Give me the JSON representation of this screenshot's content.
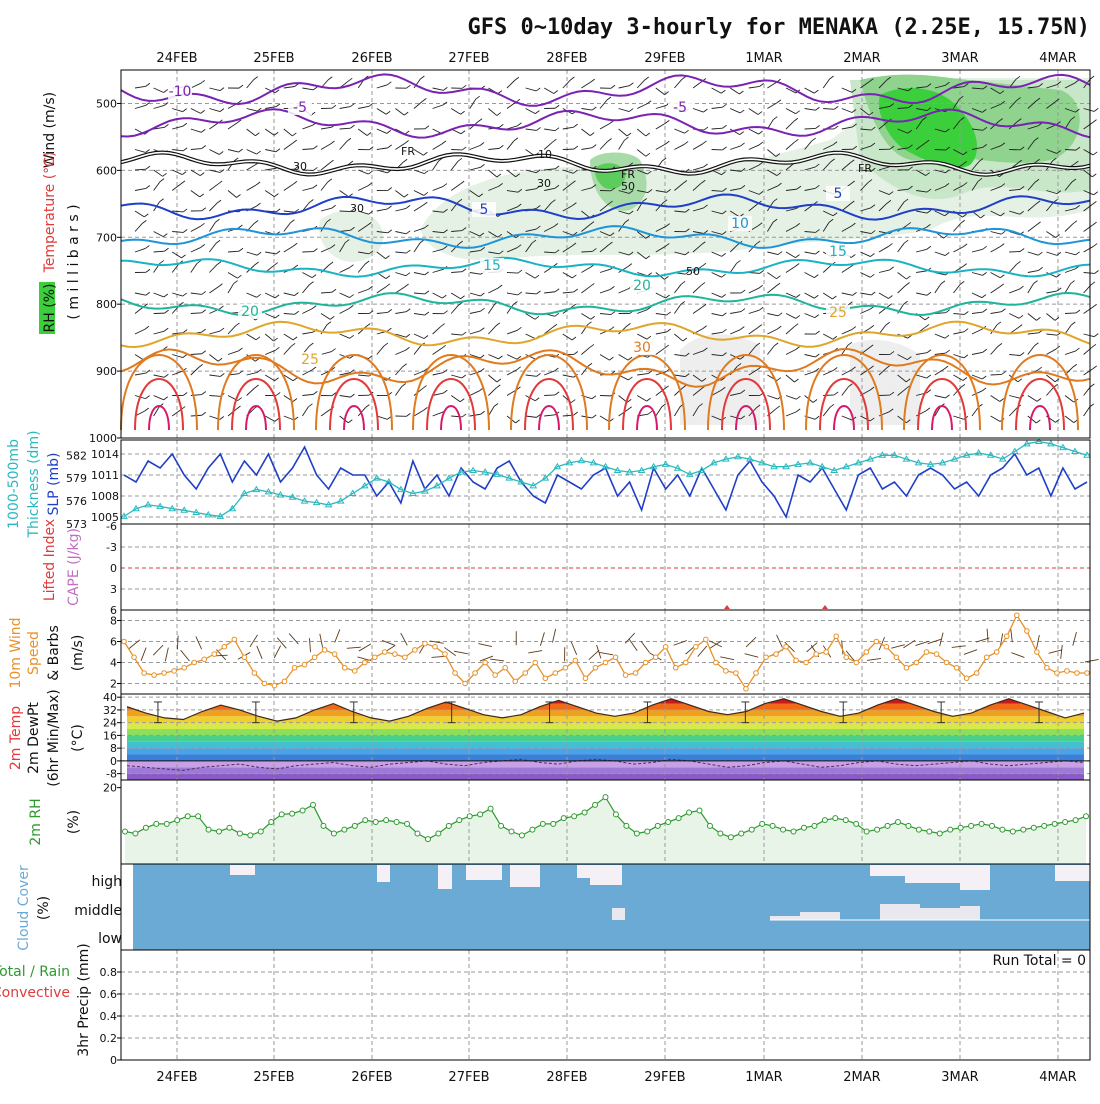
{
  "title": "GFS 0~10day 3-hourly for MENAKA (2.25E, 15.75N)",
  "dates": [
    "24FEB",
    "25FEB",
    "26FEB",
    "27FEB",
    "28FEB",
    "29FEB",
    "1MAR",
    "2MAR",
    "3MAR",
    "4MAR"
  ],
  "colors": {
    "rh_green": "#3ccf3c",
    "slp_blue": "#1f3fc8",
    "thick_cyan": "#2bb9bf",
    "wind_orange": "#e8912a",
    "rh_line": "#2e9a2e",
    "cloud_blue": "#6aaad4",
    "lifted_red": "#e23a3a",
    "cape_purple": "#c070c0",
    "freezing": "#111111"
  },
  "panels": {
    "upper": {
      "label_wind": "Wind (m/s)",
      "label_temp": "Temperature (°C)",
      "label_rh": "RH (%)",
      "label_mb": "( m i l l i b a r s )",
      "yticks": [
        "500",
        "600",
        "700",
        "800",
        "900",
        "1000"
      ],
      "freezing_label": "FR",
      "isotherm_labels": [
        "-10",
        "-5",
        "-5",
        "5",
        "5",
        "10",
        "15",
        "15",
        "20",
        "20",
        "25",
        "25",
        "30"
      ],
      "rh_labels": [
        "30",
        "30",
        "30",
        "50",
        "50",
        "10"
      ]
    },
    "slp": {
      "label_thick": "Thickness (dm)",
      "label_thick2": "1000-500mb",
      "label_slp": "SLP (mb)",
      "thick_ticks": [
        "582",
        "579",
        "576",
        "573"
      ],
      "slp_ticks": [
        "1014",
        "1011",
        "1008",
        "1005"
      ]
    },
    "stability": {
      "label_li": "Lifted Index",
      "label_cape": "CAPE (J/kg)",
      "yticks": [
        "-6",
        "-3",
        "0",
        "3",
        "6"
      ]
    },
    "wind10": {
      "label_1": "10m Wind",
      "label_2": "Speed",
      "label_3": "& Barbs",
      "label_unit": "(m/s)",
      "yticks": [
        "8",
        "6",
        "4",
        "2"
      ]
    },
    "temp2m": {
      "label_1": "2m Temp",
      "label_2": "2m DewPt",
      "label_3": "(6hr Min/Max)",
      "label_unit": "(°C)",
      "yticks": [
        "40",
        "32",
        "24",
        "16",
        "8",
        "0",
        "-8"
      ]
    },
    "rh2m": {
      "label_1": "2m RH",
      "label_unit": "(%)",
      "yticks": [
        "20"
      ]
    },
    "cloud": {
      "label_1": "Cloud Cover",
      "label_unit": "(%)",
      "rows": [
        "high",
        "middle",
        "low"
      ]
    },
    "precip": {
      "label_1": "Total / Rain",
      "label_2": "Convective",
      "label_3": "3hr Precip (mm)",
      "yticks": [
        "0.8",
        "0.6",
        "0.4",
        "0.2",
        "0"
      ],
      "run_total": "Run Total = 0"
    }
  },
  "chart_data": [
    {
      "type": "line",
      "name": "upper-air cross section",
      "y_axis": "pressure (mb)",
      "ylim": [
        450,
        1000
      ],
      "freezing_level_mb": 590,
      "isotherms_C": [
        -10,
        -5,
        5,
        10,
        15,
        20,
        25,
        30
      ]
    },
    {
      "type": "line",
      "series": [
        {
          "name": "SLP (mb)",
          "values": [
            1011,
            1010,
            1013,
            1012,
            1014,
            1011,
            1009,
            1012,
            1014,
            1010,
            1013,
            1011,
            1014,
            1010,
            1012,
            1015,
            1011,
            1009,
            1012,
            1011,
            1011,
            1008,
            1010,
            1007,
            1013,
            1009,
            1011,
            1008,
            1012,
            1010,
            1009,
            1012,
            1013,
            1010,
            1008,
            1007,
            1011,
            1010,
            1009,
            1011,
            1012,
            1008,
            1010,
            1006,
            1012,
            1009,
            1011,
            1008,
            1012,
            1009,
            1006,
            1011,
            1013,
            1010,
            1008,
            1005,
            1011,
            1010,
            1012,
            1009,
            1006,
            1011,
            1012,
            1009,
            1010,
            1008,
            1011,
            1012,
            1011,
            1009,
            1010,
            1008,
            1011,
            1012,
            1014,
            1011,
            1012,
            1008,
            1012,
            1009,
            1010
          ]
        },
        {
          "name": "Thickness (dm)",
          "values": [
            574,
            575,
            575.5,
            575.3,
            575,
            574.8,
            574.5,
            574.2,
            574,
            575,
            577,
            577.5,
            577.2,
            576.8,
            576.5,
            576,
            575.8,
            575.5,
            576,
            577,
            578,
            579,
            578.5,
            577.5,
            577,
            577.3,
            578,
            579,
            579.8,
            580,
            579.8,
            579.5,
            579,
            578.5,
            578,
            579,
            580.5,
            581,
            581.3,
            581,
            580.5,
            580,
            579.8,
            580,
            580.5,
            580.8,
            580.3,
            579.5,
            580,
            581,
            581.5,
            581.8,
            581.5,
            581,
            580.5,
            580.5,
            580.8,
            581,
            580.5,
            580,
            580.5,
            581,
            581.5,
            582,
            582,
            581.5,
            581,
            580.8,
            581,
            581.5,
            582,
            582.3,
            582,
            581.5,
            582.5,
            583.5,
            583.8,
            583.5,
            583,
            582.5,
            582
          ]
        }
      ],
      "ylim_slp": [
        1004,
        1016
      ],
      "ylim_thick": [
        573,
        584
      ]
    },
    {
      "type": "line",
      "name": "10m wind speed",
      "ylabel": "(m/s)",
      "ylim": [
        1,
        9
      ],
      "values": [
        6,
        4.5,
        3,
        2.8,
        3,
        3.2,
        3.5,
        4,
        4.3,
        4.8,
        5.5,
        6.2,
        4.5,
        3,
        2,
        1.8,
        2.2,
        3.5,
        3.8,
        4.5,
        5.2,
        4.8,
        3.5,
        3.2,
        4,
        4.5,
        5,
        4.8,
        4.5,
        5.2,
        5.8,
        5.5,
        4.8,
        3,
        2,
        3,
        4,
        2.8,
        3.5,
        2.2,
        3,
        4,
        2.5,
        3,
        3.5,
        4.2,
        2.5,
        3.5,
        4,
        4.5,
        2.8,
        3,
        4,
        4.5,
        5.5,
        3.5,
        4,
        5.5,
        6.2,
        4,
        3.2,
        3,
        1.5,
        3,
        4.5,
        4.8,
        5.5,
        4.2,
        4,
        4.8,
        5,
        6.5,
        4.5,
        4,
        5,
        6,
        5.5,
        4.5,
        3.5,
        4,
        5,
        4.8,
        4,
        3.5,
        2.5,
        3,
        4.5,
        5,
        6.5,
        8.5,
        7,
        5,
        3.5,
        3,
        3.2,
        3,
        3
      ]
    },
    {
      "type": "area",
      "name": "2m temperature",
      "ylabel": "(°C)",
      "ylim": [
        -12,
        42
      ],
      "values": [
        34,
        30,
        27,
        26,
        31,
        35,
        32,
        28,
        25,
        27,
        32,
        36,
        31,
        27,
        25,
        28,
        33,
        37,
        33,
        29,
        27,
        29,
        34,
        38,
        34,
        30,
        28,
        30,
        35,
        39,
        35,
        31,
        29,
        31,
        36,
        39,
        35,
        31,
        28,
        30,
        35,
        39,
        35,
        31,
        28,
        30,
        35,
        39,
        35,
        31,
        27,
        30
      ]
    },
    {
      "type": "line",
      "name": "2m dew point",
      "ylim": [
        -12,
        42
      ],
      "values": [
        -3,
        -4,
        -5,
        -6,
        -4,
        -3,
        -2,
        -4,
        -5,
        -3,
        -2,
        -1,
        -3,
        -4,
        -2,
        -1,
        0,
        -2,
        -3,
        -1,
        0,
        1,
        -1,
        -2,
        0,
        1,
        0,
        -2,
        -1,
        1,
        0,
        -2,
        -4,
        -3,
        -1,
        0,
        -2,
        -4,
        -3,
        -1,
        0,
        -2,
        -3,
        -2,
        -1,
        0,
        -2,
        -3,
        -2,
        -1,
        0,
        -1
      ]
    },
    {
      "type": "line",
      "name": "2m RH",
      "ylabel": "(%)",
      "ylim": [
        0,
        22
      ],
      "values": [
        8.5,
        8,
        9.5,
        10.5,
        10.5,
        11.5,
        12.5,
        12.5,
        9,
        8.5,
        9.5,
        8,
        7.5,
        8.5,
        11,
        13,
        13.2,
        14,
        15.5,
        10,
        8,
        9,
        10,
        11.5,
        11,
        11.5,
        11,
        10.5,
        8,
        6.5,
        8,
        10,
        11.5,
        12.5,
        13,
        14.5,
        10,
        8.5,
        7.5,
        9,
        10.5,
        10.5,
        12,
        12.5,
        13.5,
        15.5,
        17.5,
        13,
        10,
        8,
        8.5,
        10,
        11,
        12,
        13.5,
        14,
        10,
        8,
        7,
        8,
        9,
        10.5,
        10,
        9,
        8.5,
        9.5,
        10,
        11.5,
        12,
        11.5,
        10.5,
        8.5,
        9,
        10,
        11,
        10,
        9,
        8.5,
        8,
        9,
        9.5,
        10,
        10.5,
        10,
        9,
        8.5,
        9,
        9.5,
        10,
        10.5,
        11,
        11.5,
        12.5
      ]
    },
    {
      "type": "bar",
      "name": "3hr precip",
      "ylabel": "3hr Precip (mm)",
      "ylim": [
        0,
        1
      ],
      "values": []
    }
  ]
}
